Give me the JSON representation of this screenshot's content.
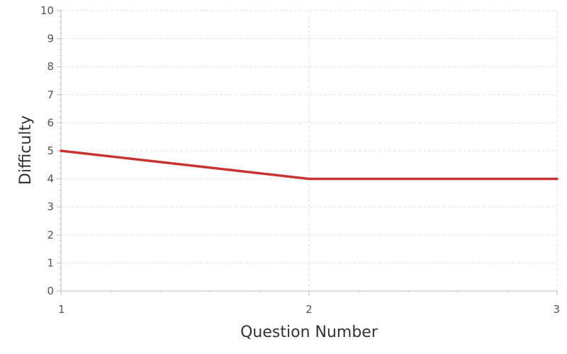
{
  "chart_data": {
    "type": "line",
    "title": "",
    "xlabel": "Question Number",
    "ylabel": "Difficulty",
    "x": [
      1,
      2,
      3
    ],
    "xlim": [
      1,
      3
    ],
    "ylim": [
      0,
      10
    ],
    "x_ticks": [
      1,
      2,
      3
    ],
    "y_ticks": [
      0,
      1,
      2,
      3,
      4,
      5,
      6,
      7,
      8,
      9,
      10
    ],
    "grid": true,
    "legend": "none",
    "series": [
      {
        "values": [
          5,
          4,
          4
        ],
        "color": "#c83232"
      }
    ]
  }
}
